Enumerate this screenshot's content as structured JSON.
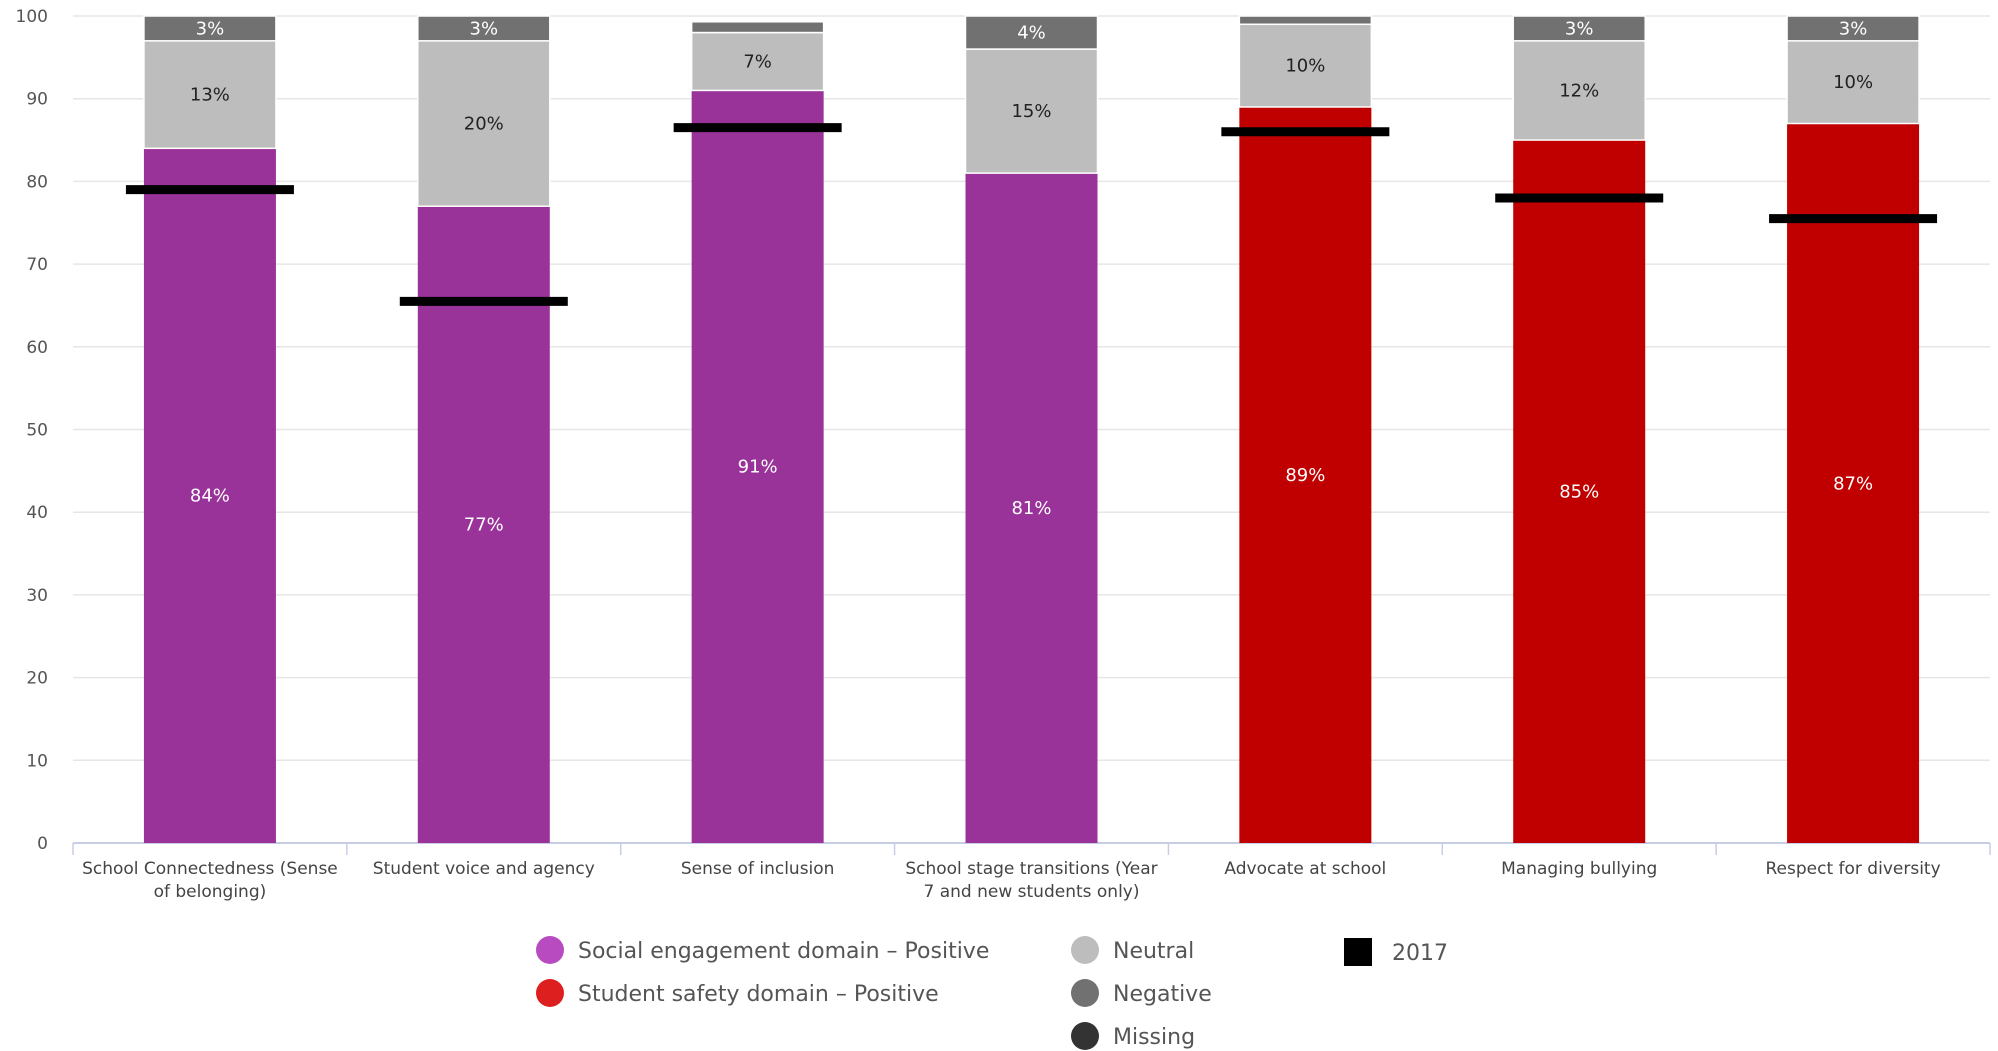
{
  "chart_data": {
    "type": "bar",
    "stacked": true,
    "ylim": [
      0,
      100
    ],
    "yticks": [
      0,
      10,
      20,
      30,
      40,
      50,
      60,
      70,
      80,
      90,
      100
    ],
    "grid": true,
    "legend_position": "bottom",
    "categories": [
      "School Connectedness (Sense of belonging)",
      "Student voice and agency",
      "Sense of inclusion",
      "School stage transitions (Year 7 and new students only)",
      "Advocate at school",
      "Managing bullying",
      "Respect for diversity"
    ],
    "category_lines": [
      [
        "School Connectedness (Sense",
        "of belonging)"
      ],
      [
        "Student voice and agency"
      ],
      [
        "Sense of inclusion"
      ],
      [
        "School stage transitions (Year",
        "7 and new students only)"
      ],
      [
        "Advocate at school"
      ],
      [
        "Managing bullying"
      ],
      [
        "Respect for diversity"
      ]
    ],
    "positive_domain": [
      "social",
      "social",
      "social",
      "social",
      "safety",
      "safety",
      "safety"
    ],
    "series": [
      {
        "name": "Positive",
        "values": [
          84,
          77,
          91,
          81,
          89,
          85,
          87
        ],
        "labels": [
          "84%",
          "77%",
          "91%",
          "81%",
          "89%",
          "85%",
          "87%"
        ]
      },
      {
        "name": "Neutral",
        "color": "#bdbdbd",
        "values": [
          13,
          20,
          7,
          15,
          10,
          12,
          10
        ],
        "labels": [
          "13%",
          "20%",
          "7%",
          "15%",
          "10%",
          "12%",
          "10%"
        ]
      },
      {
        "name": "Negative",
        "color": "#717171",
        "values": [
          3,
          3,
          1.3,
          4,
          1.4,
          3,
          3
        ],
        "labels": [
          "3%",
          "3%",
          "",
          "4%",
          "",
          "3%",
          "3%"
        ]
      }
    ],
    "markers_2017": [
      79,
      65.5,
      86.5,
      86,
      78,
      75.5
    ],
    "markers_2017_index": [
      0,
      1,
      2,
      4,
      5,
      6
    ],
    "domain_colors": {
      "social": "#993399",
      "safety": "#c00000"
    },
    "legend": [
      {
        "label": "Social engagement domain – Positive",
        "color": "#b84bbf",
        "shape": "circle"
      },
      {
        "label": "Student safety domain – Positive",
        "color": "#dd1f1f",
        "shape": "circle"
      },
      {
        "label": "Neutral",
        "color": "#bdbdbd",
        "shape": "circle"
      },
      {
        "label": "Negative",
        "color": "#717171",
        "shape": "circle"
      },
      {
        "label": "Missing",
        "color": "#333333",
        "shape": "circle"
      },
      {
        "label": "2017",
        "color": "#000000",
        "shape": "square"
      }
    ]
  }
}
